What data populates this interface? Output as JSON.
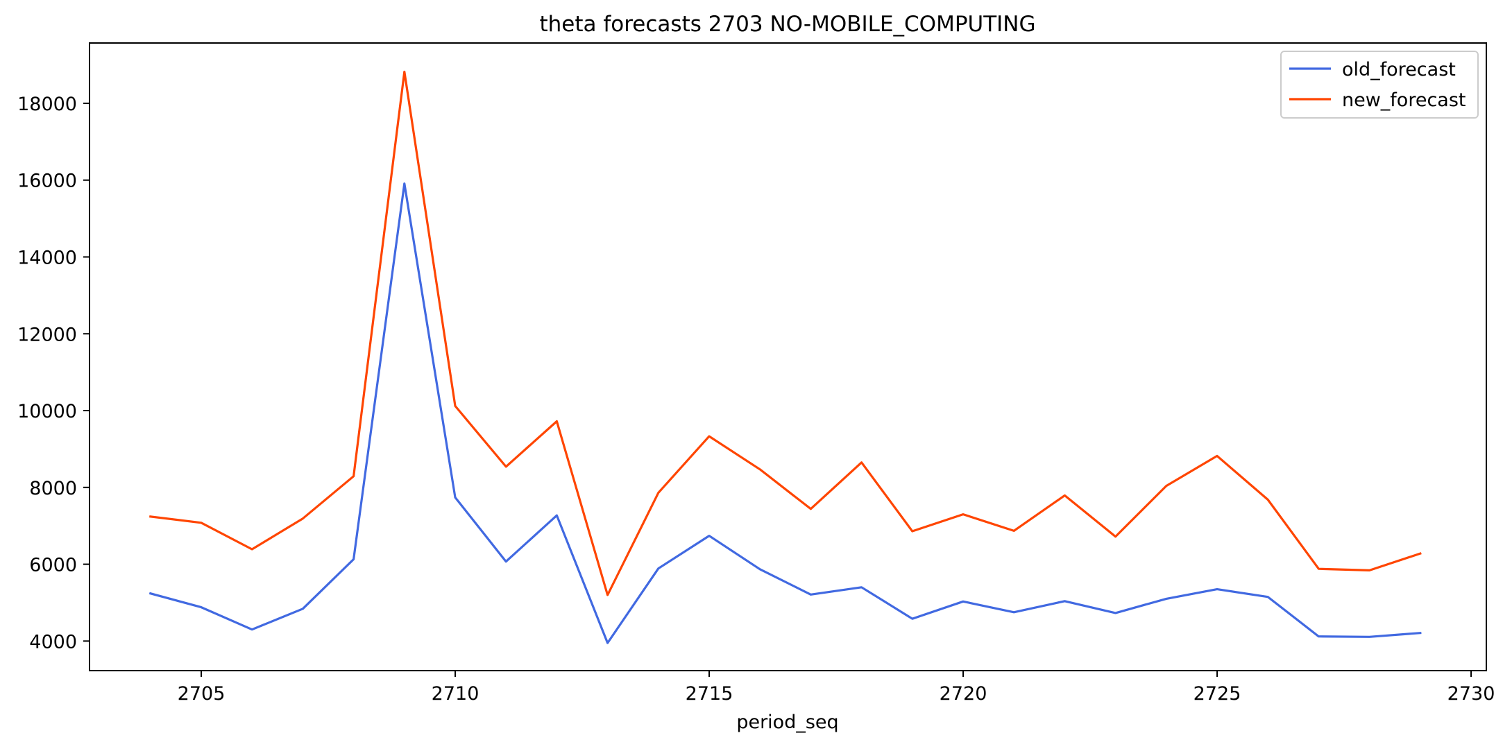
{
  "chart_data": {
    "type": "line",
    "title": "theta forecasts 2703 NO-MOBILE_COMPUTING",
    "xlabel": "period_seq",
    "ylabel": "",
    "xlim": [
      2702.8,
      2730.3
    ],
    "ylim": [
      3230,
      19570
    ],
    "x_ticks": [
      2705,
      2710,
      2715,
      2720,
      2725,
      2730
    ],
    "y_ticks": [
      4000,
      6000,
      8000,
      10000,
      12000,
      14000,
      16000,
      18000
    ],
    "grid": false,
    "legend_position": "top-right",
    "x": [
      2704,
      2705,
      2706,
      2707,
      2708,
      2709,
      2710,
      2711,
      2712,
      2713,
      2714,
      2715,
      2716,
      2717,
      2718,
      2719,
      2720,
      2721,
      2722,
      2723,
      2724,
      2725,
      2726,
      2727,
      2728,
      2729
    ],
    "series": [
      {
        "name": "old_forecast",
        "color": "#4169e1",
        "values": [
          5240,
          4880,
          4300,
          4840,
          6130,
          15910,
          7740,
          6070,
          7270,
          3950,
          5890,
          6740,
          5870,
          5210,
          5400,
          4580,
          5030,
          4750,
          5040,
          4730,
          5100,
          5350,
          5150,
          4120,
          4110,
          4210
        ]
      },
      {
        "name": "new_forecast",
        "color": "#ff4500",
        "values": [
          7240,
          7080,
          6390,
          7190,
          8290,
          18820,
          10120,
          8540,
          9720,
          5200,
          7860,
          9330,
          8470,
          7440,
          8650,
          6860,
          7300,
          6870,
          7790,
          6720,
          8040,
          8820,
          7680,
          5880,
          5840,
          6280
        ]
      }
    ]
  }
}
